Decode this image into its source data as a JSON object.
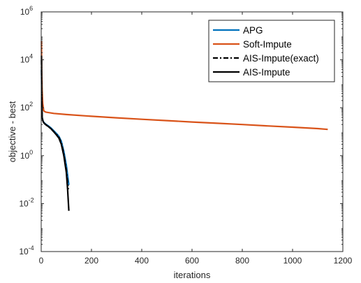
{
  "chart_data": {
    "type": "line",
    "xlabel": "iterations",
    "ylabel": "objective - best",
    "xlim": [
      0,
      1200
    ],
    "ylim": [
      0.0001,
      1000000
    ],
    "yscale": "log",
    "grid": false,
    "legend_position": "top-right",
    "xticks": [
      {
        "value": 0,
        "label": "0"
      },
      {
        "value": 200,
        "label": "200"
      },
      {
        "value": 400,
        "label": "400"
      },
      {
        "value": 600,
        "label": "600"
      },
      {
        "value": 800,
        "label": "800"
      },
      {
        "value": 1000,
        "label": "1000"
      },
      {
        "value": 1200,
        "label": "1200"
      }
    ],
    "yticks": [
      {
        "value": 0.0001,
        "base": "10",
        "exp": "-4"
      },
      {
        "value": 0.01,
        "base": "10",
        "exp": "-2"
      },
      {
        "value": 1,
        "base": "10",
        "exp": "0"
      },
      {
        "value": 100,
        "base": "10",
        "exp": "2"
      },
      {
        "value": 10000,
        "base": "10",
        "exp": "4"
      },
      {
        "value": 1000000,
        "base": "10",
        "exp": "6"
      }
    ],
    "series": [
      {
        "name": "APG",
        "color": "#0072BD",
        "dash": "solid",
        "x": [
          1,
          2,
          3,
          4,
          6,
          8,
          10,
          15,
          20,
          30,
          40,
          50,
          60,
          70,
          80,
          90,
          100,
          110
        ],
        "y": [
          4000,
          300,
          80,
          40,
          30,
          27,
          25,
          22,
          20,
          17,
          14,
          11,
          8.5,
          6.5,
          4,
          1.5,
          0.4,
          0.06
        ]
      },
      {
        "name": "Soft-Impute",
        "color": "#D95319",
        "dash": "solid",
        "x": [
          1,
          2,
          4,
          6,
          10,
          15,
          20,
          50,
          100,
          200,
          300,
          400,
          500,
          600,
          700,
          800,
          900,
          1000,
          1100,
          1140
        ],
        "y": [
          60000,
          3000,
          500,
          150,
          75,
          68,
          65,
          58,
          52,
          44,
          38,
          33,
          29,
          25.5,
          22.5,
          20,
          17.5,
          15.5,
          13.5,
          12.5
        ]
      },
      {
        "name": "AIS-Impute(exact)",
        "color": "#000000",
        "dash": "dashdot",
        "x": [
          1,
          2,
          3,
          4,
          6,
          8,
          10,
          15,
          20,
          30,
          40,
          50,
          60,
          70,
          80,
          90,
          100,
          108
        ],
        "y": [
          10000,
          400,
          80,
          40,
          30,
          26,
          24,
          21,
          19,
          16,
          13,
          10,
          8,
          6,
          3.5,
          1.2,
          0.25,
          0.04
        ]
      },
      {
        "name": "AIS-Impute",
        "color": "#000000",
        "dash": "solid",
        "x": [
          1,
          2,
          3,
          4,
          6,
          8,
          10,
          15,
          20,
          30,
          40,
          50,
          60,
          70,
          80,
          90,
          100,
          105,
          110
        ],
        "y": [
          15000,
          500,
          90,
          40,
          30,
          26,
          24,
          21,
          19,
          16,
          13,
          10,
          7.5,
          5.5,
          3,
          1,
          0.2,
          0.04,
          0.005
        ]
      }
    ]
  }
}
